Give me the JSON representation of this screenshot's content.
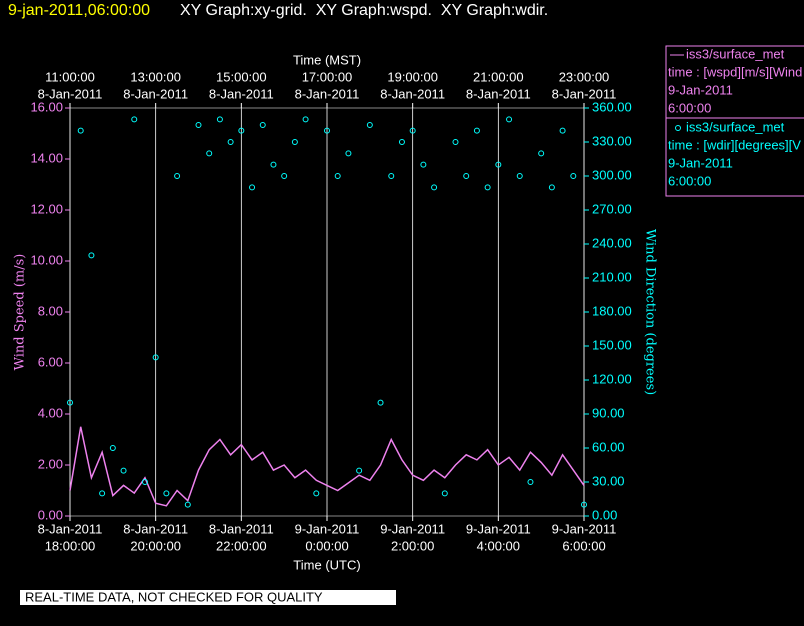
{
  "chart_data": {
    "type": "line_scatter",
    "title": "9-jan-2011,06:00:00",
    "subtitle": "XY Graph:xy-grid.  XY Graph:wspd.  XY Graph:wdir.",
    "xlabel": "Time (UTC)",
    "x2label": "Time (MST)",
    "ylabel": "Wind Speed (m/s)",
    "y2label": "Wind Direction (degrees)",
    "note": "REAL-TIME DATA, NOT CHECKED FOR QUALITY",
    "grid": "x",
    "xlim": [
      "2011-01-08T18:00",
      "2011-01-09T06:00"
    ],
    "xticks": [
      {
        "value": "2011-01-08T18:00",
        "label": [
          "8-Jan-2011",
          "18:00:00"
        ]
      },
      {
        "value": "2011-01-08T20:00",
        "label": [
          "8-Jan-2011",
          "20:00:00"
        ]
      },
      {
        "value": "2011-01-08T22:00",
        "label": [
          "8-Jan-2011",
          "22:00:00"
        ]
      },
      {
        "value": "2011-01-09T00:00",
        "label": [
          "9-Jan-2011",
          "0:00:00"
        ]
      },
      {
        "value": "2011-01-09T02:00",
        "label": [
          "9-Jan-2011",
          "2:00:00"
        ]
      },
      {
        "value": "2011-01-09T04:00",
        "label": [
          "9-Jan-2011",
          "4:00:00"
        ]
      },
      {
        "value": "2011-01-09T06:00",
        "label": [
          "9-Jan-2011",
          "6:00:00"
        ]
      }
    ],
    "x2ticks": [
      {
        "value": "2011-01-08T18:00",
        "label": [
          "11:00:00",
          "8-Jan-2011"
        ]
      },
      {
        "value": "2011-01-08T20:00",
        "label": [
          "13:00:00",
          "8-Jan-2011"
        ]
      },
      {
        "value": "2011-01-08T22:00",
        "label": [
          "15:00:00",
          "8-Jan-2011"
        ]
      },
      {
        "value": "2011-01-09T00:00",
        "label": [
          "17:00:00",
          "8-Jan-2011"
        ]
      },
      {
        "value": "2011-01-09T02:00",
        "label": [
          "19:00:00",
          "8-Jan-2011"
        ]
      },
      {
        "value": "2011-01-09T04:00",
        "label": [
          "21:00:00",
          "8-Jan-2011"
        ]
      },
      {
        "value": "2011-01-09T06:00",
        "label": [
          "23:00:00",
          "8-Jan-2011"
        ]
      }
    ],
    "ylim": [
      0,
      16
    ],
    "yticks": [
      {
        "value": 0,
        "label": "0.00"
      },
      {
        "value": 2,
        "label": "2.00"
      },
      {
        "value": 4,
        "label": "4.00"
      },
      {
        "value": 6,
        "label": "6.00"
      },
      {
        "value": 8,
        "label": "8.00"
      },
      {
        "value": 10,
        "label": "10.00"
      },
      {
        "value": 12,
        "label": "12.00"
      },
      {
        "value": 14,
        "label": "14.00"
      },
      {
        "value": 16,
        "label": "16.00"
      }
    ],
    "y2lim": [
      0,
      360
    ],
    "y2ticks": [
      {
        "value": 0,
        "label": "0.00"
      },
      {
        "value": 30,
        "label": "30.00"
      },
      {
        "value": 60,
        "label": "60.00"
      },
      {
        "value": 90,
        "label": "90.00"
      },
      {
        "value": 120,
        "label": "120.00"
      },
      {
        "value": 150,
        "label": "150.00"
      },
      {
        "value": 180,
        "label": "180.00"
      },
      {
        "value": 210,
        "label": "210.00"
      },
      {
        "value": 240,
        "label": "240.00"
      },
      {
        "value": 270,
        "label": "270.00"
      },
      {
        "value": 300,
        "label": "300.00"
      },
      {
        "value": 330,
        "label": "330.00"
      },
      {
        "value": 360,
        "label": "360.00"
      }
    ],
    "x": [
      "2011-01-08T18:00",
      "2011-01-08T18:15",
      "2011-01-08T18:30",
      "2011-01-08T18:45",
      "2011-01-08T19:00",
      "2011-01-08T19:15",
      "2011-01-08T19:30",
      "2011-01-08T19:45",
      "2011-01-08T20:00",
      "2011-01-08T20:15",
      "2011-01-08T20:30",
      "2011-01-08T20:45",
      "2011-01-08T21:00",
      "2011-01-08T21:15",
      "2011-01-08T21:30",
      "2011-01-08T21:45",
      "2011-01-08T22:00",
      "2011-01-08T22:15",
      "2011-01-08T22:30",
      "2011-01-08T22:45",
      "2011-01-08T23:00",
      "2011-01-08T23:15",
      "2011-01-08T23:30",
      "2011-01-08T23:45",
      "2011-01-09T00:00",
      "2011-01-09T00:15",
      "2011-01-09T00:30",
      "2011-01-09T00:45",
      "2011-01-09T01:00",
      "2011-01-09T01:15",
      "2011-01-09T01:30",
      "2011-01-09T01:45",
      "2011-01-09T02:00",
      "2011-01-09T02:15",
      "2011-01-09T02:30",
      "2011-01-09T02:45",
      "2011-01-09T03:00",
      "2011-01-09T03:15",
      "2011-01-09T03:30",
      "2011-01-09T03:45",
      "2011-01-09T04:00",
      "2011-01-09T04:15",
      "2011-01-09T04:30",
      "2011-01-09T04:45",
      "2011-01-09T05:00",
      "2011-01-09T05:15",
      "2011-01-09T05:30",
      "2011-01-09T05:45",
      "2011-01-09T06:00"
    ],
    "series": [
      {
        "name": "iss3/surface_met",
        "description": [
          "time : [wspd][m/s][Wind",
          "9-Jan-2011",
          "6:00:00"
        ],
        "color": "#ee82ee",
        "style": "line",
        "values": [
          1.0,
          3.5,
          1.5,
          2.5,
          0.8,
          1.2,
          0.9,
          1.5,
          0.5,
          0.4,
          1.0,
          0.6,
          1.8,
          2.6,
          3.0,
          2.4,
          2.8,
          2.2,
          2.5,
          1.8,
          2.0,
          1.5,
          1.8,
          1.4,
          1.2,
          1.0,
          1.3,
          1.6,
          1.4,
          2.0,
          3.0,
          2.2,
          1.6,
          1.4,
          1.8,
          1.5,
          2.0,
          2.4,
          2.2,
          2.6,
          2.0,
          2.3,
          1.8,
          2.5,
          2.1,
          1.6,
          2.4,
          1.8,
          1.2
        ]
      },
      {
        "name": "iss3/surface_met",
        "description": [
          "time : [wdir][degrees][V",
          "9-Jan-2011",
          "6:00:00"
        ],
        "color": "#00ffff",
        "style": "markers",
        "axis": "y2",
        "values": [
          100,
          340,
          230,
          20,
          60,
          40,
          350,
          30,
          140,
          20,
          300,
          10,
          345,
          320,
          350,
          330,
          340,
          290,
          345,
          310,
          300,
          330,
          350,
          20,
          340,
          300,
          320,
          40,
          345,
          100,
          300,
          330,
          340,
          310,
          290,
          20,
          330,
          300,
          340,
          290,
          310,
          350,
          300,
          30,
          320,
          290,
          340,
          300,
          10
        ]
      }
    ]
  }
}
